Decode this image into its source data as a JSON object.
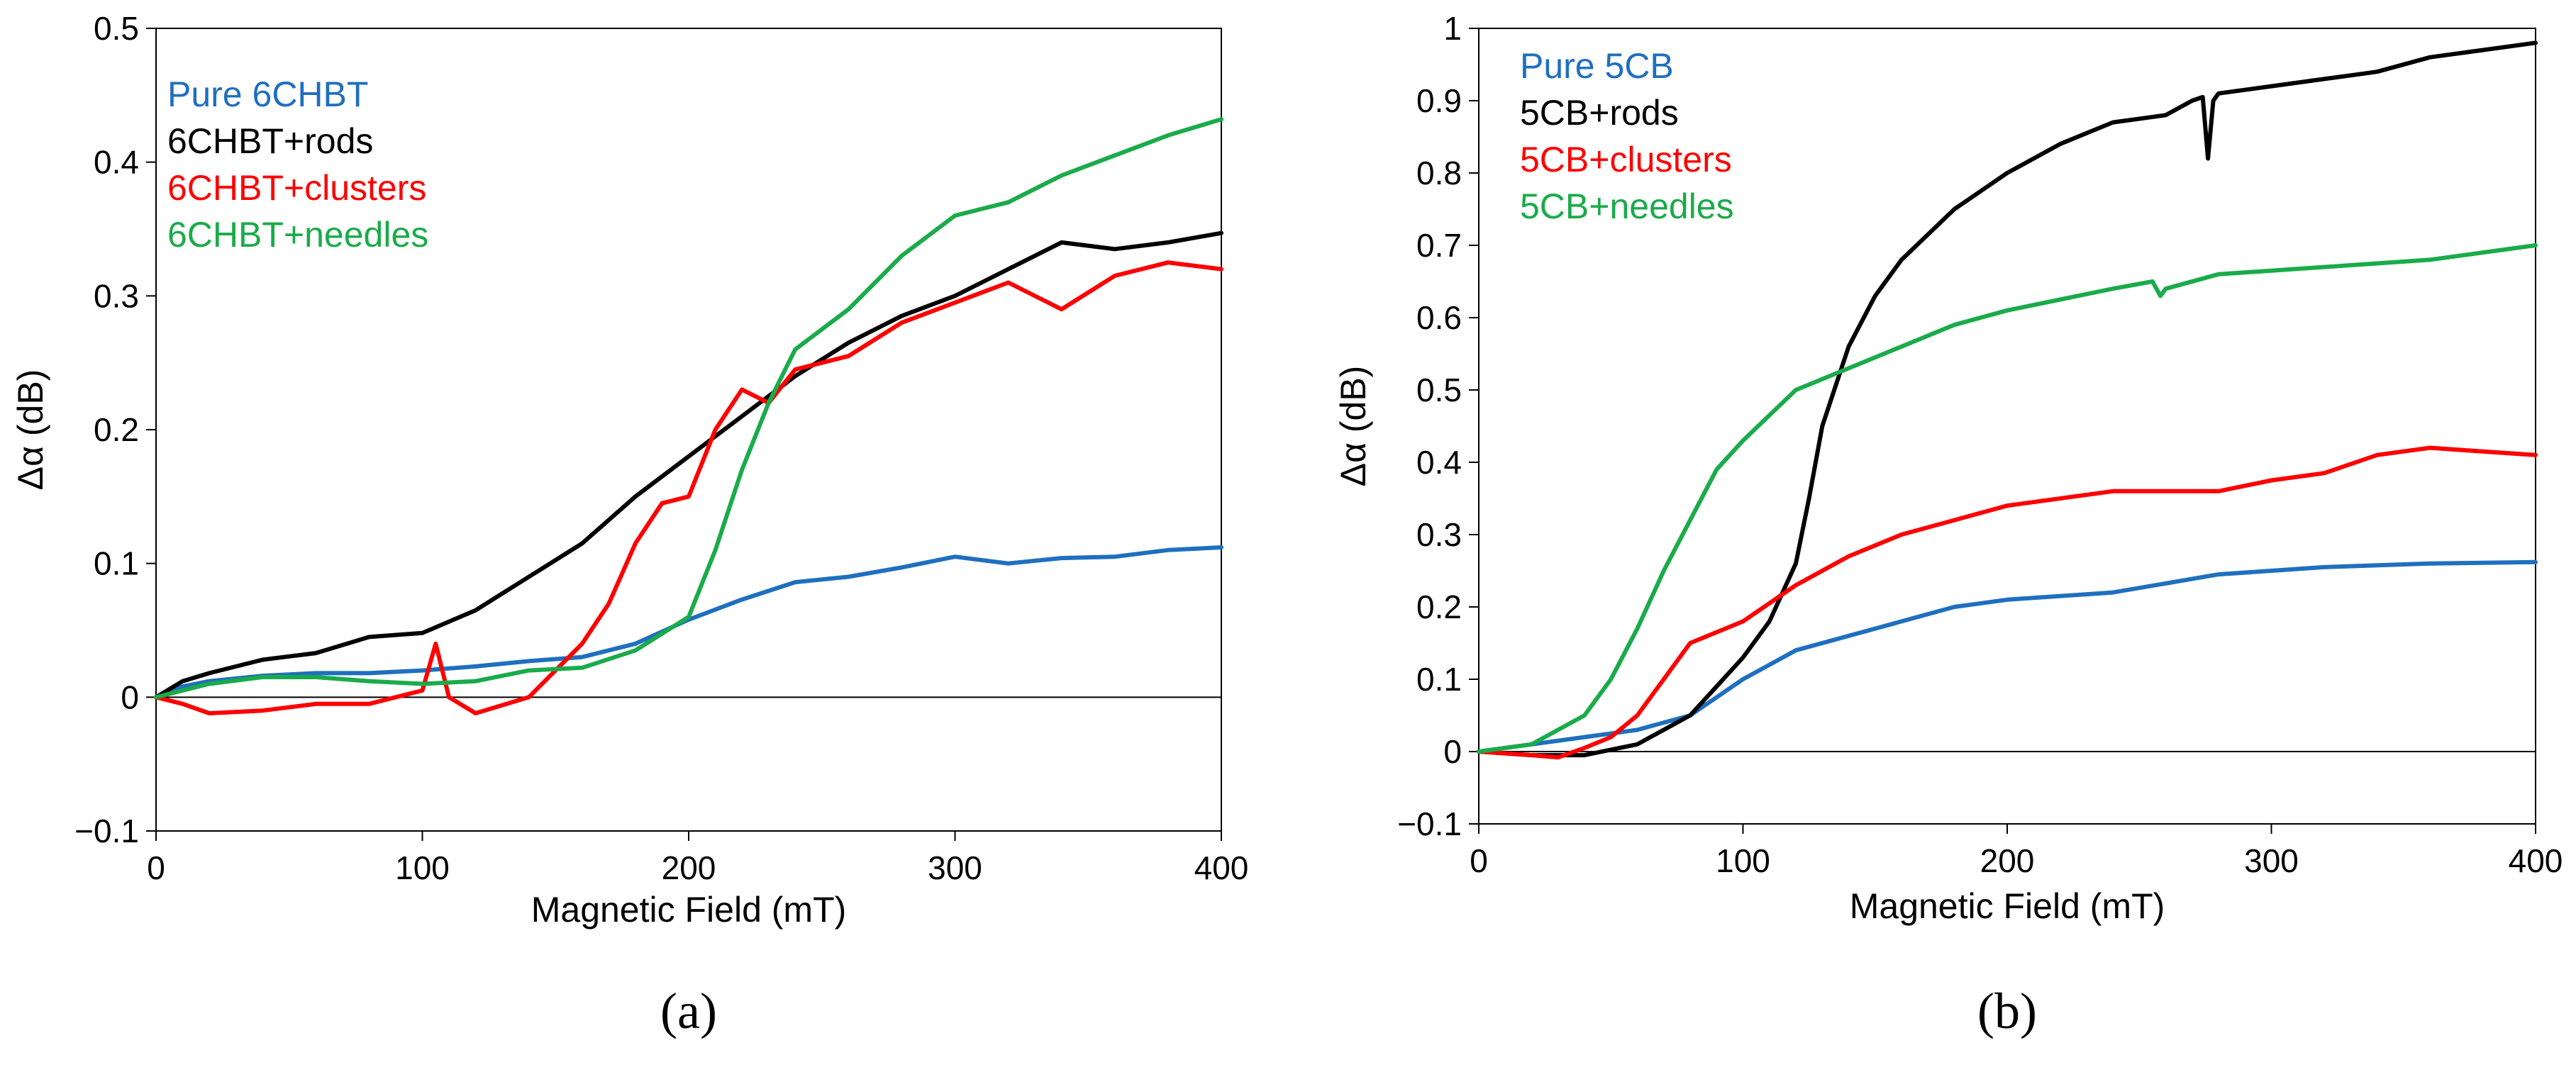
{
  "chart_data": [
    {
      "type": "line",
      "panel_label": "(a)",
      "xlabel": "Magnetic Field (mT)",
      "ylabel": "Δα (dB)",
      "xlim": [
        0,
        400
      ],
      "ylim": [
        -0.1,
        0.5
      ],
      "xticks": [
        0,
        100,
        200,
        300,
        400
      ],
      "xtick_labels": [
        "0",
        "100",
        "200",
        "300",
        "400"
      ],
      "yticks": [
        -0.1,
        0,
        0.1,
        0.2,
        0.3,
        0.4,
        0.5
      ],
      "ytick_labels": [
        "−0.1",
        "0",
        "0.1",
        "0.2",
        "0.3",
        "0.4",
        "0.5"
      ],
      "legend_position": "top-left",
      "series": [
        {
          "name": "Pure 6CHBT",
          "color": "#1f6fbf",
          "x": [
            0,
            10,
            20,
            40,
            60,
            80,
            100,
            120,
            140,
            160,
            180,
            200,
            220,
            240,
            260,
            280,
            300,
            320,
            340,
            360,
            380,
            400
          ],
          "y": [
            0,
            0.008,
            0.012,
            0.016,
            0.018,
            0.018,
            0.02,
            0.023,
            0.027,
            0.03,
            0.04,
            0.058,
            0.073,
            0.086,
            0.09,
            0.097,
            0.105,
            0.1,
            0.104,
            0.105,
            0.11,
            0.112
          ]
        },
        {
          "name": "6CHBT+rods",
          "color": "#000000",
          "x": [
            0,
            10,
            20,
            40,
            60,
            80,
            100,
            120,
            140,
            160,
            180,
            200,
            220,
            240,
            260,
            280,
            300,
            320,
            340,
            360,
            380,
            400
          ],
          "y": [
            0,
            0.012,
            0.018,
            0.028,
            0.033,
            0.045,
            0.048,
            0.065,
            0.09,
            0.115,
            0.15,
            0.18,
            0.21,
            0.24,
            0.265,
            0.285,
            0.3,
            0.32,
            0.34,
            0.335,
            0.34,
            0.347
          ]
        },
        {
          "name": "6CHBT+clusters",
          "color": "#ff0000",
          "x": [
            0,
            10,
            20,
            40,
            60,
            80,
            100,
            105,
            110,
            120,
            140,
            160,
            170,
            180,
            190,
            200,
            210,
            220,
            230,
            240,
            260,
            280,
            300,
            320,
            340,
            360,
            380,
            400
          ],
          "y": [
            0,
            -0.005,
            -0.012,
            -0.01,
            -0.005,
            -0.005,
            0.005,
            0.04,
            0,
            -0.012,
            0.0,
            0.04,
            0.07,
            0.115,
            0.145,
            0.15,
            0.2,
            0.23,
            0.22,
            0.245,
            0.255,
            0.28,
            0.295,
            0.31,
            0.29,
            0.315,
            0.325,
            0.32
          ]
        },
        {
          "name": "6CHBT+needles",
          "color": "#1aab4a",
          "x": [
            0,
            10,
            20,
            40,
            60,
            80,
            100,
            120,
            140,
            160,
            180,
            200,
            210,
            220,
            230,
            240,
            260,
            280,
            300,
            320,
            340,
            360,
            380,
            400
          ],
          "y": [
            0,
            0.005,
            0.01,
            0.015,
            0.015,
            0.012,
            0.01,
            0.012,
            0.02,
            0.022,
            0.035,
            0.06,
            0.11,
            0.17,
            0.22,
            0.26,
            0.29,
            0.33,
            0.36,
            0.37,
            0.39,
            0.405,
            0.42,
            0.432
          ]
        }
      ]
    },
    {
      "type": "line",
      "panel_label": "(b)",
      "xlabel": "Magnetic Field (mT)",
      "ylabel": "Δα (dB)",
      "xlim": [
        0,
        400
      ],
      "ylim": [
        -0.1,
        1.0
      ],
      "xticks": [
        0,
        100,
        200,
        300,
        400
      ],
      "xtick_labels": [
        "0",
        "100",
        "200",
        "300",
        "400"
      ],
      "yticks": [
        -0.1,
        0,
        0.1,
        0.2,
        0.3,
        0.4,
        0.5,
        0.6,
        0.7,
        0.8,
        0.9,
        1.0
      ],
      "ytick_labels": [
        "−0.1",
        "0",
        "0.1",
        "0.2",
        "0.3",
        "0.4",
        "0.5",
        "0.6",
        "0.7",
        "0.8",
        "0.9",
        "1"
      ],
      "legend_position": "top-left",
      "series": [
        {
          "name": "Pure 5CB",
          "color": "#1f6fbf",
          "x": [
            0,
            20,
            40,
            60,
            80,
            100,
            120,
            140,
            160,
            180,
            200,
            240,
            280,
            320,
            360,
            400
          ],
          "y": [
            0,
            0.01,
            0.02,
            0.03,
            0.05,
            0.1,
            0.14,
            0.16,
            0.18,
            0.2,
            0.21,
            0.22,
            0.245,
            0.255,
            0.26,
            0.262
          ]
        },
        {
          "name": "5CB+rods",
          "color": "#000000",
          "x": [
            0,
            20,
            40,
            60,
            80,
            90,
            100,
            110,
            120,
            125,
            130,
            140,
            150,
            160,
            180,
            200,
            220,
            240,
            260,
            270,
            274,
            276,
            278,
            280,
            300,
            320,
            340,
            360,
            380,
            400
          ],
          "y": [
            0,
            -0.005,
            -0.005,
            0.01,
            0.05,
            0.09,
            0.13,
            0.18,
            0.26,
            0.35,
            0.45,
            0.56,
            0.63,
            0.68,
            0.75,
            0.8,
            0.84,
            0.87,
            0.88,
            0.9,
            0.905,
            0.82,
            0.9,
            0.91,
            0.92,
            0.93,
            0.94,
            0.96,
            0.97,
            0.98
          ]
        },
        {
          "name": "5CB+clusters",
          "color": "#ff0000",
          "x": [
            0,
            20,
            30,
            40,
            50,
            60,
            70,
            80,
            100,
            120,
            140,
            160,
            180,
            200,
            240,
            280,
            300,
            320,
            340,
            360,
            380,
            400
          ],
          "y": [
            0,
            -0.005,
            -0.008,
            0.005,
            0.02,
            0.05,
            0.1,
            0.15,
            0.18,
            0.23,
            0.27,
            0.3,
            0.32,
            0.34,
            0.36,
            0.36,
            0.375,
            0.385,
            0.41,
            0.42,
            0.415,
            0.41
          ]
        },
        {
          "name": "5CB+needles",
          "color": "#1aab4a",
          "x": [
            0,
            20,
            40,
            50,
            60,
            70,
            80,
            90,
            100,
            120,
            140,
            160,
            180,
            200,
            220,
            240,
            255,
            258,
            260,
            280,
            300,
            320,
            340,
            360,
            380,
            400
          ],
          "y": [
            0,
            0.01,
            0.05,
            0.1,
            0.17,
            0.25,
            0.32,
            0.39,
            0.43,
            0.5,
            0.53,
            0.56,
            0.59,
            0.61,
            0.625,
            0.64,
            0.65,
            0.63,
            0.64,
            0.66,
            0.665,
            0.67,
            0.675,
            0.68,
            0.69,
            0.7
          ]
        }
      ]
    }
  ]
}
